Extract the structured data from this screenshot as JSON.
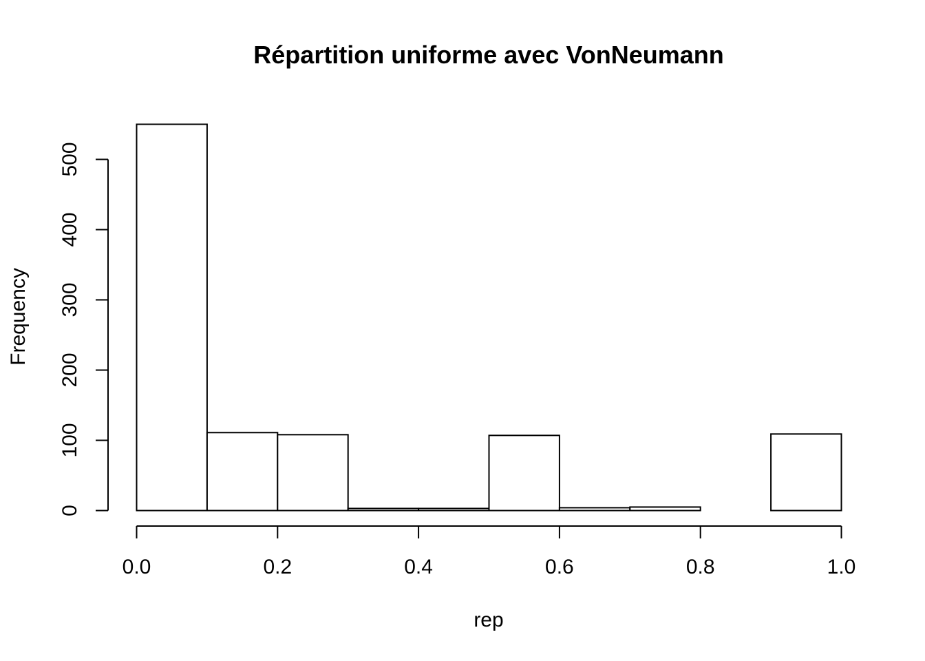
{
  "chart_data": {
    "type": "bar",
    "title": "Répartition uniforme avec VonNeumann",
    "xlabel": "rep",
    "ylabel": "Frequency",
    "bins": [
      {
        "x0": 0.0,
        "x1": 0.1,
        "count": 550
      },
      {
        "x0": 0.1,
        "x1": 0.2,
        "count": 111
      },
      {
        "x0": 0.2,
        "x1": 0.3,
        "count": 108
      },
      {
        "x0": 0.3,
        "x1": 0.4,
        "count": 3
      },
      {
        "x0": 0.4,
        "x1": 0.5,
        "count": 3
      },
      {
        "x0": 0.5,
        "x1": 0.6,
        "count": 107
      },
      {
        "x0": 0.6,
        "x1": 0.7,
        "count": 4
      },
      {
        "x0": 0.7,
        "x1": 0.8,
        "count": 5
      },
      {
        "x0": 0.8,
        "x1": 0.9,
        "count": 0
      },
      {
        "x0": 0.9,
        "x1": 1.0,
        "count": 109
      }
    ],
    "xlim": [
      0,
      1
    ],
    "ylim": [
      0,
      500
    ],
    "x_ticks": [
      "0.0",
      "0.2",
      "0.4",
      "0.6",
      "0.8",
      "1.0"
    ],
    "y_ticks": [
      "0",
      "100",
      "200",
      "300",
      "400",
      "500"
    ],
    "grid": false,
    "legend": "none",
    "colors": {
      "bar_fill": "#ffffff",
      "bar_stroke": "#000000",
      "axis": "#000000"
    }
  }
}
